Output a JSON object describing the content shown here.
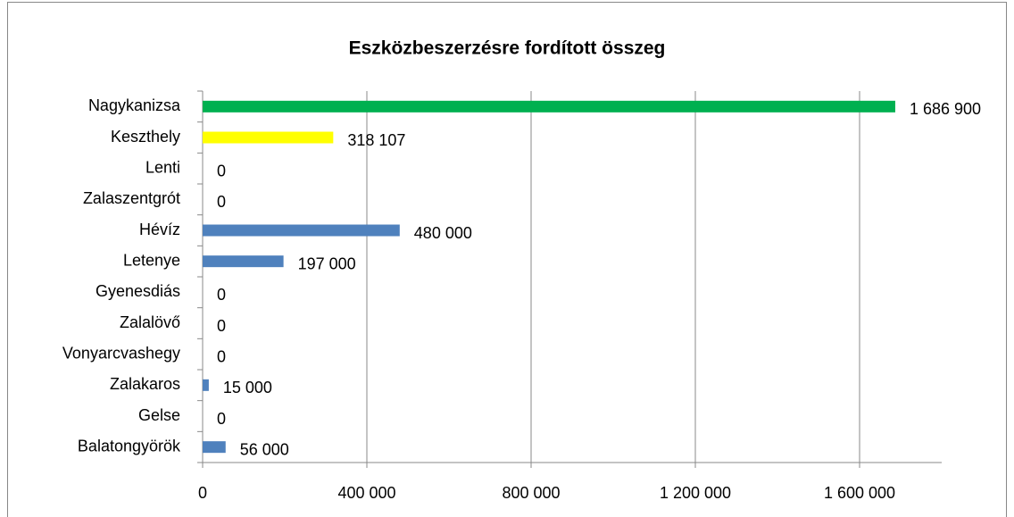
{
  "chart_data": {
    "type": "hbar",
    "title": "Eszközbeszerzésre fordított összeg",
    "categories": [
      "Nagykanizsa",
      "Keszthely",
      "Lenti",
      "Zalaszentgrót",
      "Hévíz",
      "Letenye",
      "Gyenesdiás",
      "Zalalövő",
      "Vonyarcvashegy",
      "Zalakaros",
      "Gelse",
      "Balatongyörök"
    ],
    "values": [
      1686900,
      318107,
      0,
      0,
      480000,
      197000,
      0,
      0,
      0,
      15000,
      0,
      56000
    ],
    "value_labels": [
      "1 686 900",
      "318 107",
      "0",
      "0",
      "480 000",
      "197 000",
      "0",
      "0",
      "0",
      "15 000",
      "0",
      "56 000"
    ],
    "colors": [
      "#00b050",
      "#ffff00",
      "#4f81bd",
      "#4f81bd",
      "#4f81bd",
      "#4f81bd",
      "#4f81bd",
      "#4f81bd",
      "#4f81bd",
      "#4f81bd",
      "#4f81bd",
      "#4f81bd"
    ],
    "xlim": [
      0,
      1800000
    ],
    "xticks": [
      0,
      {
        "value": 400000,
        "label": "400 000"
      },
      {
        "value": 800000,
        "label": "800 000"
      },
      {
        "value": 1200000,
        "label": "1 200 000"
      },
      {
        "value": 1600000,
        "label": "1 600 000"
      }
    ],
    "grid": true
  }
}
